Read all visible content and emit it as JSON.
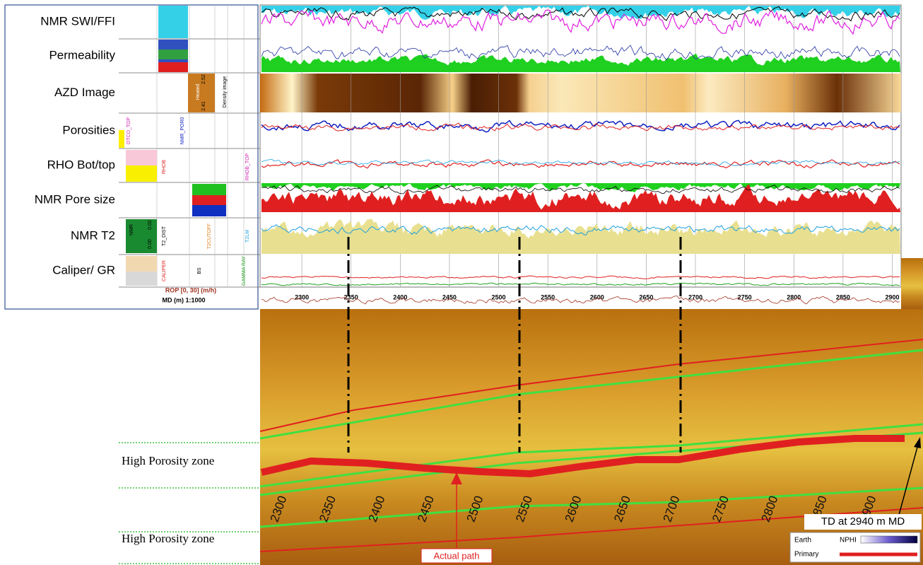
{
  "tracks": [
    "NMR SWI/FFI",
    "Permeability",
    "AZD Image",
    "Porosities",
    "RHO Bot/top",
    "NMR Pore size",
    "NMR T2",
    "Caliper/ GR"
  ],
  "header": {
    "rop": "ROP [0, 30] (m/h)",
    "md": "MD (m) 1:1000",
    "heated": "Heated",
    "density_image": "Density image",
    "d_min": "2.41",
    "d_max": "2.52",
    "otco_top": "OTCO_TOP",
    "nmr_por": "NMR_POR0",
    "rhob": "RHOB",
    "rhob_top": "RHOB_TOP",
    "nmr": "NMR",
    "t2_min": "0.00",
    "t2_max": "0.02",
    "t2_dist": "T2_DIST",
    "t2cutoff": "T2CUTOFF",
    "t2lm": "T2LM",
    "caliper": "CALIPER",
    "bs": "BS",
    "gamma_ray": "GAMMA RAY"
  },
  "depth_axis": {
    "xlim": [
      2259,
      2909
    ],
    "ticks": [
      2300,
      2350,
      2400,
      2450,
      2500,
      2550,
      2600,
      2650,
      2700,
      2750,
      2800,
      2850,
      2900
    ]
  },
  "well_labels": [
    2300,
    2350,
    2400,
    2450,
    2500,
    2550,
    2600,
    2650,
    2700,
    2750,
    2800,
    2850,
    2900
  ],
  "annotations": {
    "zone_1": "High Porosity zone",
    "zone_2": "High Porosity zone",
    "actual_path": "Actual path",
    "td": "TD at 2940 m MD"
  },
  "legend": {
    "earth": "Earth",
    "nphi": "NPHI",
    "primary": "Primary"
  }
}
